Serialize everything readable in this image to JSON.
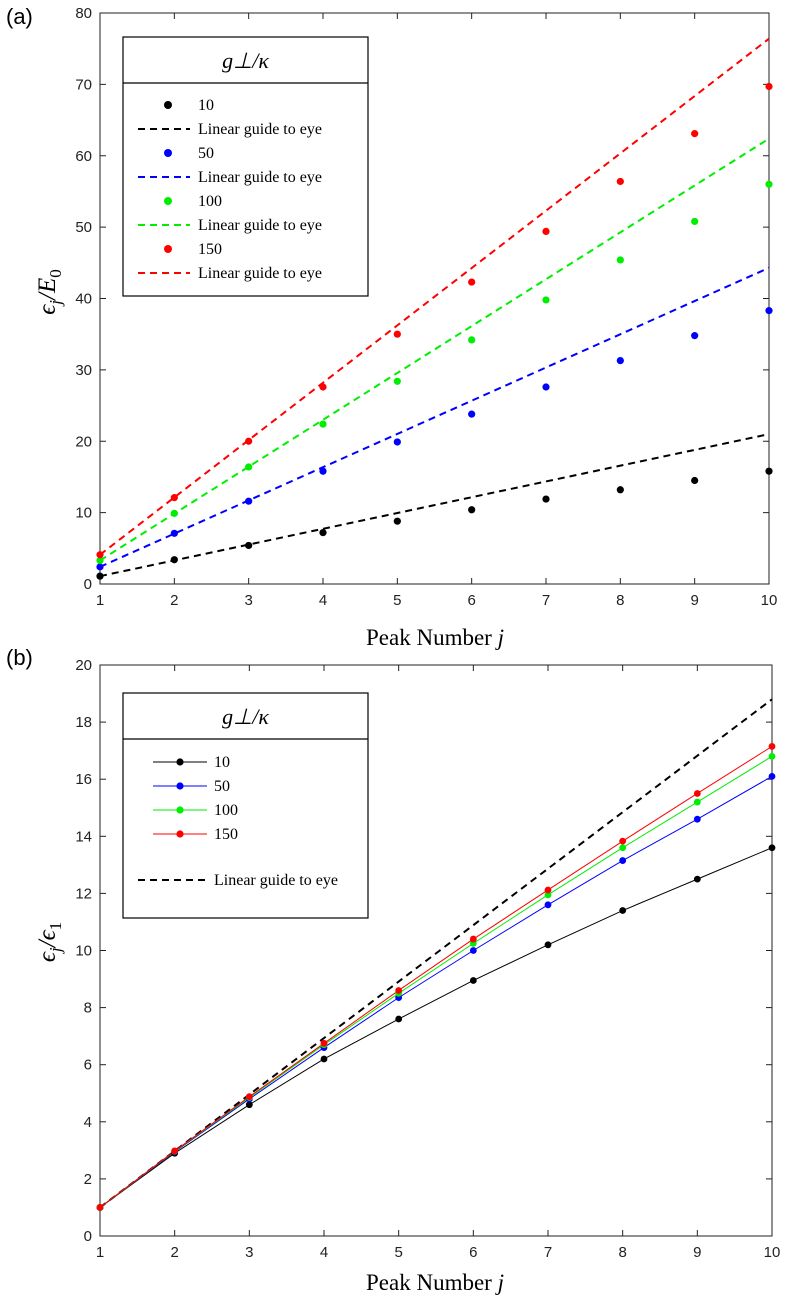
{
  "chart_data": [
    {
      "type": "scatter",
      "panel_label": "(a)",
      "xlabel": "Peak Number",
      "xlabel_var": "j",
      "ylabel_base": "ϵ",
      "ylabel_sub": "j",
      "ylabel_den": "/E",
      "ylabel_den_sub": "0",
      "xlim": [
        1,
        10
      ],
      "ylim": [
        0,
        80
      ],
      "xticks": [
        1,
        2,
        3,
        4,
        5,
        6,
        7,
        8,
        9,
        10
      ],
      "yticks": [
        0,
        10,
        20,
        30,
        40,
        50,
        60,
        70,
        80
      ],
      "legend_title": "g⊥/κ",
      "legend_position": "top-left",
      "guide_label": "Linear guide to eye",
      "x": [
        1,
        2,
        3,
        4,
        5,
        6,
        7,
        8,
        9,
        10
      ],
      "series": [
        {
          "name": "10",
          "color": "#000000",
          "values": [
            1.1,
            3.4,
            5.4,
            7.2,
            8.8,
            10.4,
            11.9,
            13.2,
            14.5,
            15.8
          ],
          "guide": [
            1.1,
            21.0
          ]
        },
        {
          "name": "50",
          "color": "#0000ff",
          "values": [
            2.4,
            7.1,
            11.6,
            15.8,
            19.9,
            23.8,
            27.6,
            31.3,
            34.8,
            38.3
          ],
          "guide": [
            2.4,
            44.3
          ]
        },
        {
          "name": "100",
          "color": "#00ee00",
          "values": [
            3.3,
            9.9,
            16.4,
            22.4,
            28.4,
            34.2,
            39.8,
            45.4,
            50.8,
            56.0
          ],
          "guide": [
            3.3,
            62.4
          ]
        },
        {
          "name": "150",
          "color": "#ff0000",
          "values": [
            4.1,
            12.1,
            20.0,
            27.6,
            35.0,
            42.3,
            49.4,
            56.4,
            63.1,
            69.7
          ],
          "guide": [
            4.1,
            76.4
          ]
        }
      ]
    },
    {
      "type": "line",
      "panel_label": "(b)",
      "xlabel": "Peak Number",
      "xlabel_var": "j",
      "ylabel_base": "ϵ",
      "ylabel_sub": "j",
      "ylabel_den": "/ϵ",
      "ylabel_den_sub": "1",
      "xlim": [
        1,
        10
      ],
      "ylim": [
        0,
        20
      ],
      "xticks": [
        1,
        2,
        3,
        4,
        5,
        6,
        7,
        8,
        9,
        10
      ],
      "yticks": [
        0,
        2,
        4,
        6,
        8,
        10,
        12,
        14,
        16,
        18,
        20
      ],
      "legend_title": "g⊥/κ",
      "legend_position": "top-left",
      "guide_label": "Linear guide to eye",
      "guide": [
        1.0,
        18.8
      ],
      "x": [
        1,
        2,
        3,
        4,
        5,
        6,
        7,
        8,
        9,
        10
      ],
      "series": [
        {
          "name": "10",
          "color": "#000000",
          "values": [
            1.0,
            2.9,
            4.6,
            6.2,
            7.6,
            8.95,
            10.2,
            11.4,
            12.5,
            13.6
          ]
        },
        {
          "name": "50",
          "color": "#0000ff",
          "values": [
            1.0,
            2.95,
            4.8,
            6.6,
            8.35,
            10.0,
            11.6,
            13.15,
            14.6,
            16.1
          ]
        },
        {
          "name": "100",
          "color": "#00ee00",
          "values": [
            1.0,
            2.97,
            4.85,
            6.7,
            8.5,
            10.25,
            11.95,
            13.6,
            15.2,
            16.8
          ]
        },
        {
          "name": "150",
          "color": "#ff0000",
          "values": [
            1.0,
            2.98,
            4.88,
            6.75,
            8.6,
            10.4,
            12.12,
            13.83,
            15.5,
            17.15
          ]
        }
      ]
    }
  ]
}
